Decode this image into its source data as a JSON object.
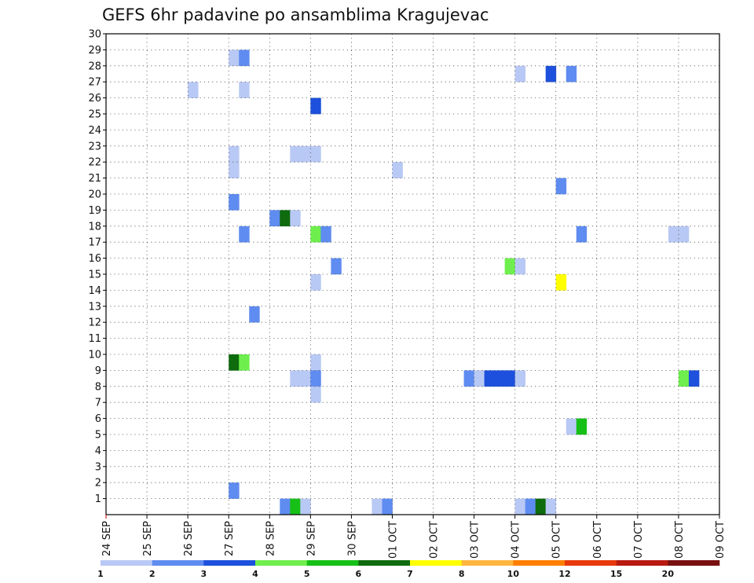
{
  "chart_data": {
    "type": "heatmap",
    "title": "GEFS 6hr padavine po ansamblima Kragujevac",
    "xlabel": "",
    "ylabel": "",
    "x_ticks": [
      "24 SEP",
      "25 SEP",
      "26 SEP",
      "27 SEP",
      "28 SEP",
      "29 SEP",
      "30 SEP",
      "01 OCT",
      "02 OCT",
      "03 OCT",
      "04 OCT",
      "05 OCT",
      "06 OCT",
      "07 OCT",
      "08 OCT",
      "09 OCT"
    ],
    "x_range_days": [
      0,
      15
    ],
    "y_ticks": [
      1,
      2,
      3,
      4,
      5,
      6,
      7,
      8,
      9,
      10,
      11,
      12,
      13,
      14,
      15,
      16,
      17,
      18,
      19,
      20,
      21,
      22,
      23,
      24,
      25,
      26,
      27,
      28,
      29,
      30
    ],
    "y_range": [
      0,
      30
    ],
    "grid": true,
    "colorbar": {
      "labels": [
        "1",
        "2",
        "3",
        "4",
        "5",
        "6",
        "7",
        "8",
        "10",
        "12",
        "15",
        "20"
      ],
      "colors": [
        "#b9c9f5",
        "#5f8cf0",
        "#1d50dc",
        "#6fef4d",
        "#16c016",
        "#0e6b0e",
        "#ffff00",
        "#ffb640",
        "#ff7f00",
        "#e8380c",
        "#b81a10",
        "#781010"
      ]
    },
    "cells_description": "Each cell: x = start day offset from 24 SEP in 6-hour steps (day units), member = ensemble member (y), v = 6hr precipitation color class",
    "cells": [
      {
        "x": 3.0,
        "member": 29,
        "v": 1
      },
      {
        "x": 3.25,
        "member": 29,
        "v": 2
      },
      {
        "x": 2.0,
        "member": 27,
        "v": 1
      },
      {
        "x": 3.25,
        "member": 27,
        "v": 1
      },
      {
        "x": 10.0,
        "member": 28,
        "v": 1
      },
      {
        "x": 10.75,
        "member": 28,
        "v": 3
      },
      {
        "x": 11.25,
        "member": 28,
        "v": 2
      },
      {
        "x": 5.0,
        "member": 26,
        "v": 3
      },
      {
        "x": 3.0,
        "member": 23,
        "v": 1
      },
      {
        "x": 4.5,
        "member": 23,
        "v": 1
      },
      {
        "x": 4.75,
        "member": 23,
        "v": 1
      },
      {
        "x": 5.0,
        "member": 23,
        "v": 1
      },
      {
        "x": 3.0,
        "member": 22,
        "v": 1
      },
      {
        "x": 7.0,
        "member": 22,
        "v": 1
      },
      {
        "x": 11.0,
        "member": 21,
        "v": 2
      },
      {
        "x": 3.0,
        "member": 20,
        "v": 2
      },
      {
        "x": 4.0,
        "member": 19,
        "v": 2
      },
      {
        "x": 4.25,
        "member": 19,
        "v": 6
      },
      {
        "x": 4.5,
        "member": 19,
        "v": 1
      },
      {
        "x": 3.25,
        "member": 18,
        "v": 2
      },
      {
        "x": 5.0,
        "member": 18,
        "v": 4
      },
      {
        "x": 5.25,
        "member": 18,
        "v": 2
      },
      {
        "x": 11.5,
        "member": 18,
        "v": 2
      },
      {
        "x": 13.75,
        "member": 18,
        "v": 1
      },
      {
        "x": 14.0,
        "member": 18,
        "v": 1
      },
      {
        "x": 5.5,
        "member": 16,
        "v": 2
      },
      {
        "x": 9.75,
        "member": 16,
        "v": 4
      },
      {
        "x": 10.0,
        "member": 16,
        "v": 1
      },
      {
        "x": 5.0,
        "member": 15,
        "v": 1
      },
      {
        "x": 11.0,
        "member": 15,
        "v": 7
      },
      {
        "x": 3.5,
        "member": 13,
        "v": 2
      },
      {
        "x": 3.0,
        "member": 10,
        "v": 6
      },
      {
        "x": 3.25,
        "member": 10,
        "v": 4
      },
      {
        "x": 5.0,
        "member": 10,
        "v": 1
      },
      {
        "x": 4.5,
        "member": 9,
        "v": 1
      },
      {
        "x": 4.75,
        "member": 9,
        "v": 1
      },
      {
        "x": 5.0,
        "member": 9,
        "v": 2
      },
      {
        "x": 8.75,
        "member": 9,
        "v": 2
      },
      {
        "x": 9.0,
        "member": 9,
        "v": 1
      },
      {
        "x": 9.25,
        "member": 9,
        "v": 3
      },
      {
        "x": 9.5,
        "member": 9,
        "v": 3
      },
      {
        "x": 9.75,
        "member": 9,
        "v": 3
      },
      {
        "x": 10.0,
        "member": 9,
        "v": 1
      },
      {
        "x": 14.0,
        "member": 9,
        "v": 4
      },
      {
        "x": 14.25,
        "member": 9,
        "v": 3
      },
      {
        "x": 5.0,
        "member": 8,
        "v": 1
      },
      {
        "x": 11.25,
        "member": 6,
        "v": 1
      },
      {
        "x": 11.5,
        "member": 6,
        "v": 5
      },
      {
        "x": 3.0,
        "member": 2,
        "v": 2
      },
      {
        "x": 4.25,
        "member": 1,
        "v": 2
      },
      {
        "x": 4.5,
        "member": 1,
        "v": 5
      },
      {
        "x": 4.75,
        "member": 1,
        "v": 1
      },
      {
        "x": 6.5,
        "member": 1,
        "v": 1
      },
      {
        "x": 6.75,
        "member": 1,
        "v": 2
      },
      {
        "x": 10.0,
        "member": 1,
        "v": 1
      },
      {
        "x": 10.25,
        "member": 1,
        "v": 2
      },
      {
        "x": 10.5,
        "member": 1,
        "v": 6
      },
      {
        "x": 10.75,
        "member": 1,
        "v": 1
      }
    ]
  }
}
